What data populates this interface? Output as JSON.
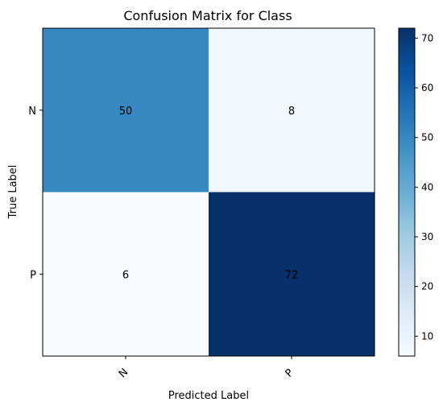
{
  "chart_data": {
    "type": "heatmap",
    "title": "Confusion Matrix for Class",
    "xlabel": "Predicted Label",
    "ylabel": "True Label",
    "x_categories": [
      "N",
      "P"
    ],
    "y_categories": [
      "N",
      "P"
    ],
    "values": [
      [
        50,
        8
      ],
      [
        6,
        72
      ]
    ],
    "colormap": "Blues",
    "colorbar": {
      "min": 6,
      "max": 72,
      "ticks": [
        10,
        20,
        30,
        40,
        50,
        60,
        70
      ]
    }
  }
}
